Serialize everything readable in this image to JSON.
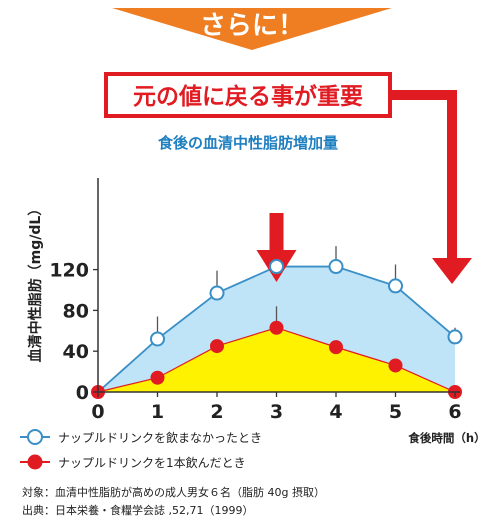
{
  "banner": {
    "text": "さらに！",
    "color": "#ef7d22"
  },
  "callout": {
    "text": "元の値に戻る事が重要",
    "color": "#e11b22"
  },
  "colors": {
    "area_without": "#bfe3f7",
    "line_without": "#3a8fc7",
    "area_with": "#fff200",
    "marker_with": "#e11b22",
    "arrow": "#e11b22",
    "subtitle": "#1e7fc0"
  },
  "chart_data": {
    "type": "line",
    "title": "食後の血清中性脂肪増加量",
    "ylabel": "血清中性脂肪（mg/dL）",
    "xlabel": "食後時間（h）",
    "x": [
      0,
      1,
      2,
      3,
      4,
      5,
      6
    ],
    "xticks": [
      "0",
      "1",
      "2",
      "3",
      "4",
      "5",
      "6"
    ],
    "yticks": [
      "0",
      "40",
      "80",
      "120"
    ],
    "xlim": [
      0,
      6
    ],
    "ylim": [
      0,
      140
    ],
    "grid": false,
    "legend_position": "bottom-left",
    "series": [
      {
        "name": "ナップルドリンクを飲まなかったとき",
        "values": [
          0,
          52,
          97,
          123,
          123,
          104,
          54
        ],
        "error_upper": [
          0,
          74,
          119,
          143,
          143,
          125,
          63
        ],
        "marker": "open-circle"
      },
      {
        "name": "ナップルドリンクを1本飲んだとき",
        "values": [
          0,
          14,
          45,
          63,
          44,
          26,
          0
        ],
        "error_upper": [
          0,
          0,
          0,
          84,
          0,
          0,
          0
        ],
        "marker": "filled-circle"
      }
    ]
  },
  "notes": [
    "対象：血清中性脂肪が高めの成人男女６名（脂肪 40g 摂取）",
    "出典：日本栄養・食糧学会誌 ,52,71（1999）"
  ]
}
